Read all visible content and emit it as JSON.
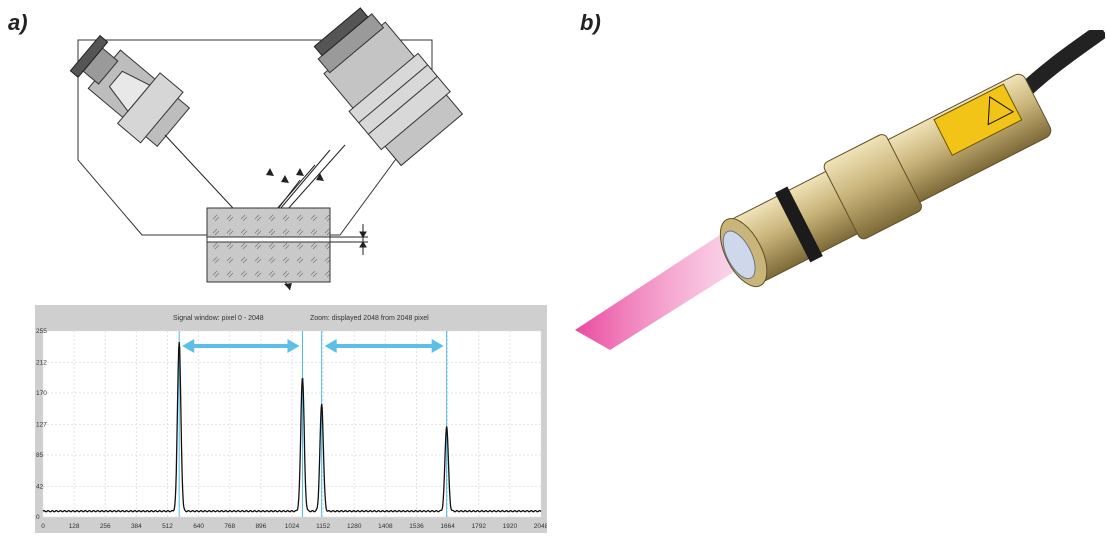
{
  "panels": {
    "a": "a)",
    "b": "b)"
  },
  "chart_data": {
    "type": "line",
    "title_left": "Signal window: pixel 0 - 2048",
    "title_right": "Zoom: displayed 2048 from 2048 pixel",
    "xlabel": "",
    "ylabel": "",
    "x_ticks": [
      0,
      128,
      256,
      384,
      512,
      640,
      768,
      896,
      1024,
      1152,
      1280,
      1408,
      1536,
      1664,
      1792,
      1920,
      2048
    ],
    "y_ticks": [
      0,
      42,
      85,
      127,
      170,
      212,
      255
    ],
    "xlim": [
      0,
      2048
    ],
    "ylim": [
      0,
      255
    ],
    "baseline": 8,
    "grid": true,
    "peaks": [
      {
        "x": 560,
        "y": 240
      },
      {
        "x": 1067,
        "y": 192
      },
      {
        "x": 1146,
        "y": 155
      },
      {
        "x": 1660,
        "y": 125
      }
    ],
    "marker_lines_x": [
      560,
      1067,
      1146,
      1660
    ],
    "arrows": [
      {
        "from": 560,
        "to": 1067
      },
      {
        "from": 1146,
        "to": 1660
      }
    ],
    "colors": {
      "signal": "#111111",
      "marker": "#4fb6e6",
      "arrow": "#5bbfe8",
      "frame": "#c8c8c8",
      "plot_bg": "#ffffff"
    }
  }
}
